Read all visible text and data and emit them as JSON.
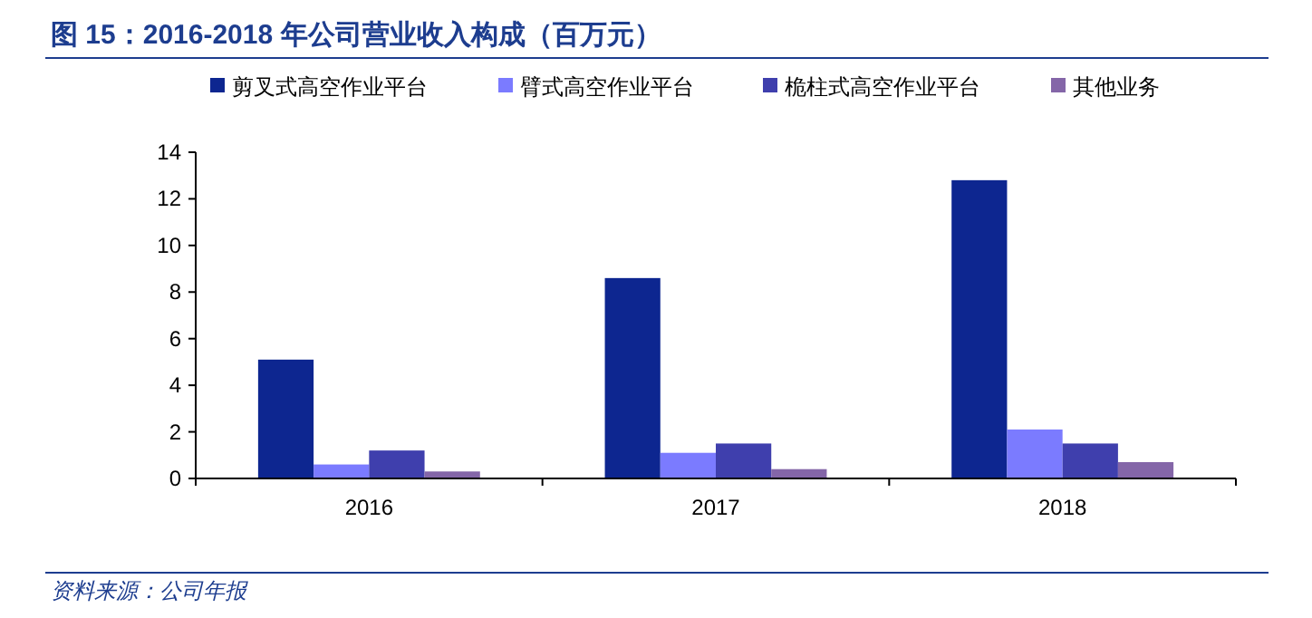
{
  "chart_data": {
    "type": "bar",
    "title": "图 15：2016-2018 年公司营业收入构成（百万元）",
    "categories": [
      "2016",
      "2017",
      "2018"
    ],
    "series": [
      {
        "name": "剪叉式高空作业平台",
        "color": "#0d2690",
        "values": [
          5.1,
          8.6,
          12.8
        ]
      },
      {
        "name": "臂式高空作业平台",
        "color": "#7b7bff",
        "values": [
          0.6,
          1.1,
          2.1
        ]
      },
      {
        "name": "桅柱式高空作业平台",
        "color": "#3f3fad",
        "values": [
          1.2,
          1.5,
          1.5
        ]
      },
      {
        "name": "其他业务",
        "color": "#8466a8",
        "values": [
          0.3,
          0.4,
          0.7
        ]
      }
    ],
    "ylim": [
      0,
      14
    ],
    "yticks": [
      0,
      2,
      4,
      6,
      8,
      10,
      12,
      14
    ],
    "grid": false,
    "legend": "top",
    "annotations": [
      "资料来源：公司年报"
    ]
  }
}
